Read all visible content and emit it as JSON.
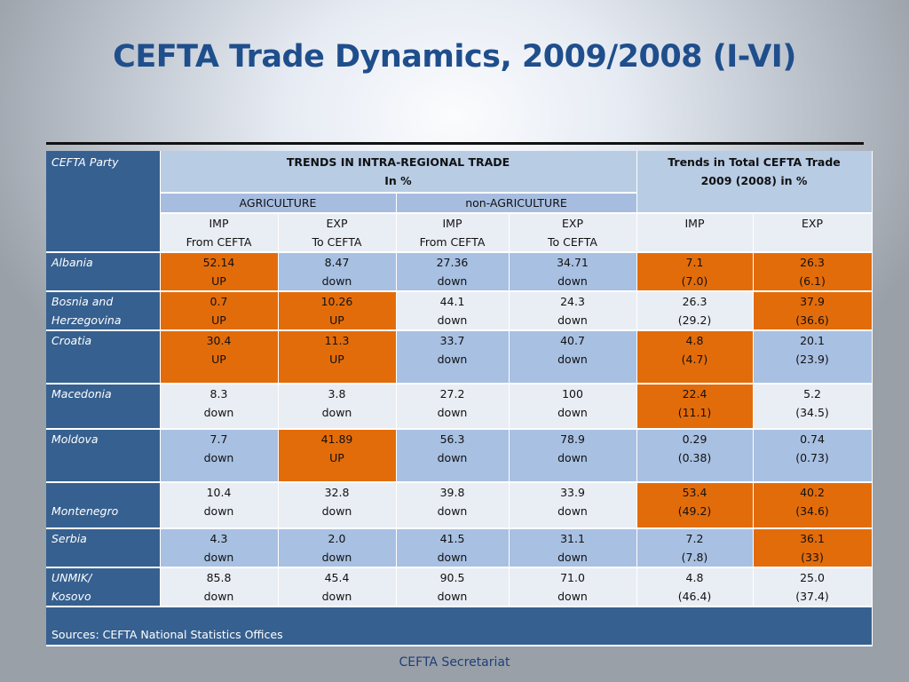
{
  "title": "CEFTA Trade Dynamics, 2009/2008 (I-VI)",
  "header": {
    "party": "CEFTA Party",
    "intra_line1": "TRENDS IN INTRA-REGIONAL TRADE",
    "intra_line2": "In %",
    "total_line1": "Trends in Total CEFTA Trade",
    "total_line2": "2009 (2008) in %",
    "agriculture": "AGRICULTURE",
    "non_agriculture": "non-AGRICULTURE",
    "imp": "IMP",
    "exp": "EXP",
    "from_cefta": "From CEFTA",
    "to_cefta": "To CEFTA"
  },
  "rows": [
    {
      "party1": "Albania",
      "party2": "",
      "cells": [
        [
          "52.14",
          "UP"
        ],
        [
          "8.47",
          "down"
        ],
        [
          "27.36",
          "down"
        ],
        [
          "34.71",
          "down"
        ],
        [
          "7.1",
          "(7.0)"
        ],
        [
          "26.3",
          "(6.1)"
        ]
      ]
    },
    {
      "party1": "Bosnia and",
      "party2": "Herzegovina",
      "cells": [
        [
          "0.7",
          "UP"
        ],
        [
          "10.26",
          "UP"
        ],
        [
          "44.1",
          "down"
        ],
        [
          "24.3",
          "down"
        ],
        [
          "26.3",
          "(29.2)"
        ],
        [
          "37.9",
          "(36.6)"
        ]
      ]
    },
    {
      "party1": "Croatia",
      "party2": "",
      "cells": [
        [
          "30.4",
          "UP"
        ],
        [
          "11.3",
          "UP"
        ],
        [
          "33.7",
          "down"
        ],
        [
          "40.7",
          "down"
        ],
        [
          "4.8",
          "(4.7)"
        ],
        [
          "20.1",
          "(23.9)"
        ]
      ]
    },
    {
      "party1": "Macedonia",
      "party2": "",
      "cells": [
        [
          "8.3",
          "down"
        ],
        [
          "3.8",
          "down"
        ],
        [
          "27.2",
          "down"
        ],
        [
          "100",
          "down"
        ],
        [
          "22.4",
          "(11.1)"
        ],
        [
          "5.2",
          "(34.5)"
        ]
      ]
    },
    {
      "party1": "Moldova",
      "party2": "",
      "cells": [
        [
          "7.7",
          "down"
        ],
        [
          "41.89",
          "UP"
        ],
        [
          "56.3",
          "down"
        ],
        [
          "78.9",
          "down"
        ],
        [
          "0.29",
          "(0.38)"
        ],
        [
          "0.74",
          "(0.73)"
        ]
      ]
    },
    {
      "party1": "",
      "party2": "Montenegro",
      "cells": [
        [
          "10.4",
          "down"
        ],
        [
          "32.8",
          "down"
        ],
        [
          "39.8",
          "down"
        ],
        [
          "33.9",
          "down"
        ],
        [
          "53.4",
          "(49.2)"
        ],
        [
          "40.2",
          "(34.6)"
        ]
      ]
    },
    {
      "party1": "Serbia",
      "party2": "",
      "cells": [
        [
          "4.3",
          "down"
        ],
        [
          "2.0",
          "down"
        ],
        [
          "41.5",
          "down"
        ],
        [
          "31.1",
          "down"
        ],
        [
          "7.2",
          "(7.8)"
        ],
        [
          "36.1",
          "(33)"
        ]
      ]
    },
    {
      "party1": "UNMIK/",
      "party2": "Kosovo",
      "cells": [
        [
          "85.8",
          "down"
        ],
        [
          "45.4",
          "down"
        ],
        [
          "90.5",
          "down"
        ],
        [
          "71.0",
          "down"
        ],
        [
          "4.8",
          "(46.4)"
        ],
        [
          "25.0",
          "(37.4)"
        ]
      ]
    }
  ],
  "sources": "Sources:  CEFTA National Statistics Offices",
  "footer": "CEFTA Secretariat"
}
